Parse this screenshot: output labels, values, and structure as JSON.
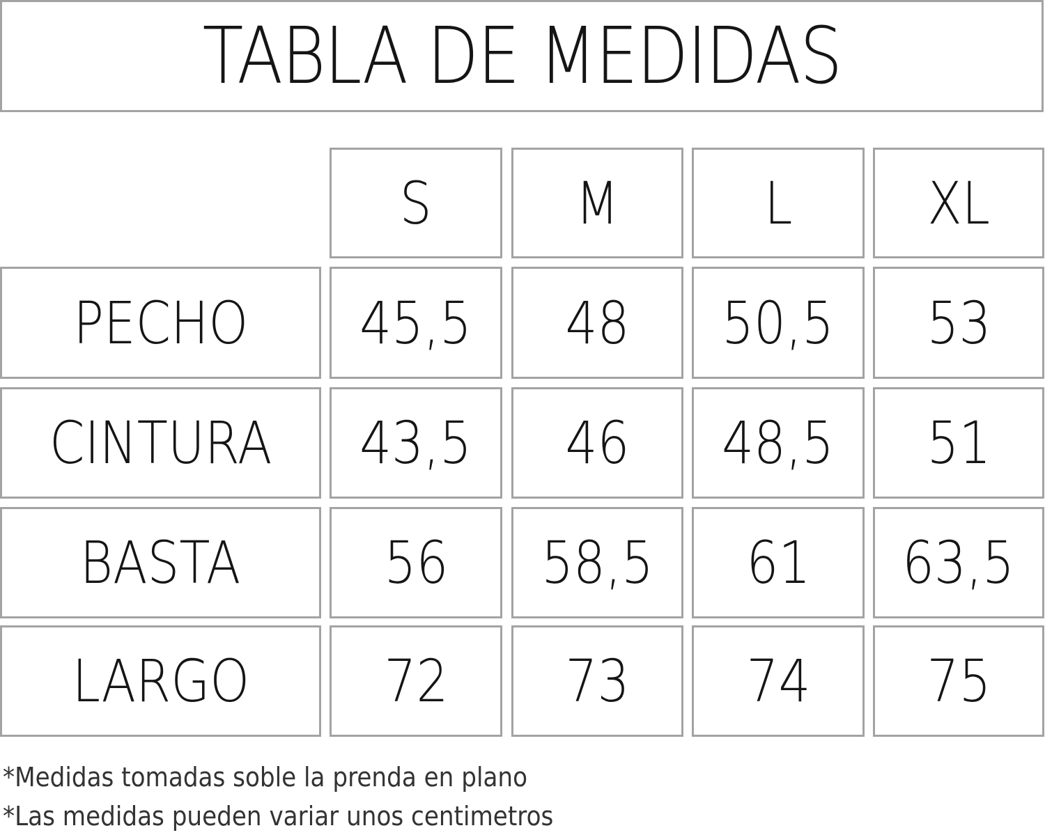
{
  "title": "TABLA DE MEDIDAS",
  "sizes": [
    "S",
    "M",
    "L",
    "XL"
  ],
  "rows": [
    {
      "label": "PECHO",
      "values": [
        "45,5",
        "48",
        "50,5",
        "53"
      ]
    },
    {
      "label": "CINTURA",
      "values": [
        "43,5",
        "46",
        "48,5",
        "51"
      ]
    },
    {
      "label": "BASTA",
      "values": [
        "56",
        "58,5",
        "61",
        "63,5"
      ]
    },
    {
      "label": "LARGO",
      "values": [
        "72",
        "73",
        "74",
        "75"
      ]
    }
  ],
  "notes": [
    "*Medidas tomadas soble la prenda en plano",
    "*Las medidas pueden variar unos centimetros"
  ]
}
